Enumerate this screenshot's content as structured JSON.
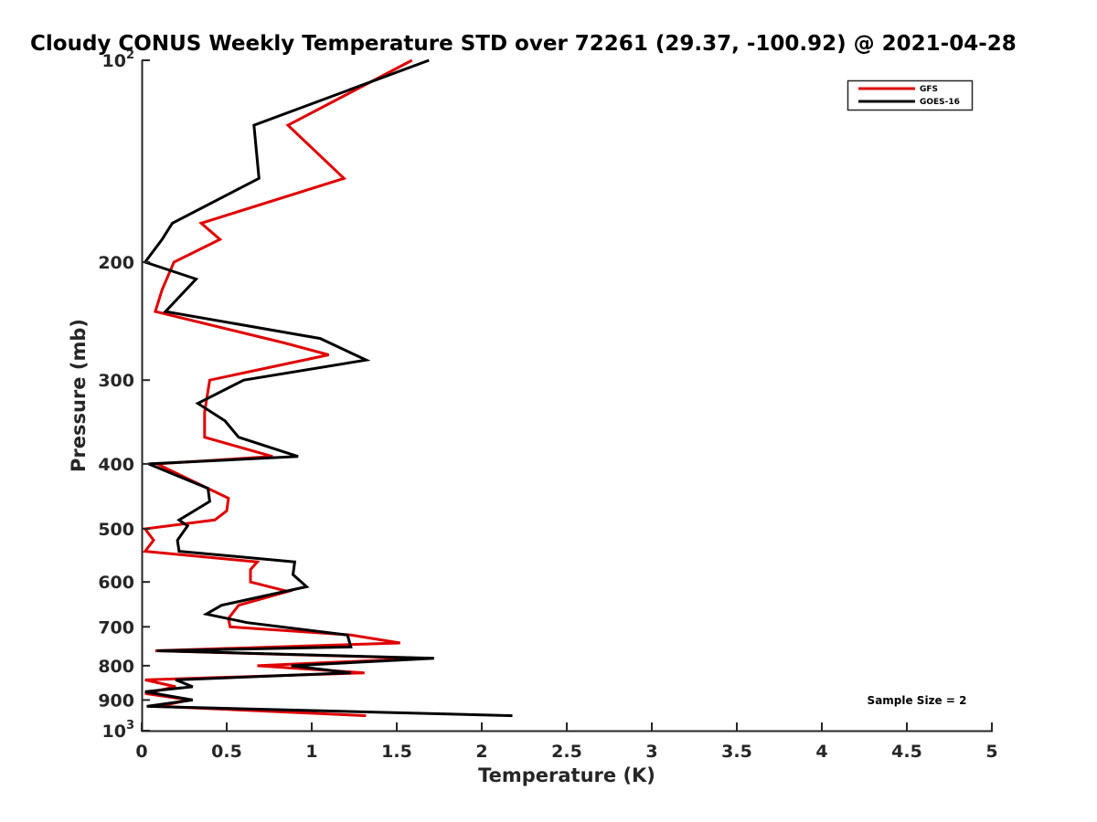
{
  "chart_data": {
    "type": "line",
    "title": "Cloudy CONUS Weekly Temperature STD over 72261 (29.37, -100.92) @ 2021-04-28",
    "xlabel": "Temperature (K)",
    "ylabel": "Pressure (mb)",
    "xlim": [
      0,
      5
    ],
    "ylim": [
      100,
      1000
    ],
    "yscale": "log",
    "y_reversed": true,
    "grid": false,
    "legend_position": "top-right",
    "x_ticks": [
      0,
      0.5,
      1,
      1.5,
      2,
      2.5,
      3,
      3.5,
      4,
      4.5,
      5
    ],
    "x_tick_labels": [
      "0",
      "0.5",
      "1",
      "1.5",
      "2",
      "2.5",
      "3",
      "3.5",
      "4",
      "4.5",
      "5"
    ],
    "y_ticks": [
      {
        "value": 100,
        "base": "10",
        "exp": "2"
      },
      {
        "value": 200,
        "base": "200",
        "exp": ""
      },
      {
        "value": 300,
        "base": "300",
        "exp": ""
      },
      {
        "value": 400,
        "base": "400",
        "exp": ""
      },
      {
        "value": 500,
        "base": "500",
        "exp": ""
      },
      {
        "value": 600,
        "base": "600",
        "exp": ""
      },
      {
        "value": 700,
        "base": "700",
        "exp": ""
      },
      {
        "value": 800,
        "base": "800",
        "exp": ""
      },
      {
        "value": 900,
        "base": "900",
        "exp": ""
      },
      {
        "value": 1000,
        "base": "10",
        "exp": "3"
      }
    ],
    "annotation": "Sample Size = 2",
    "series": [
      {
        "name": "GFS",
        "color": "#e00000",
        "points": [
          [
            1.59,
            100
          ],
          [
            0.86,
            125
          ],
          [
            1.19,
            150
          ],
          [
            0.35,
            175
          ],
          [
            0.46,
            185
          ],
          [
            0.19,
            200
          ],
          [
            0.12,
            220
          ],
          [
            0.08,
            237
          ],
          [
            0.84,
            264
          ],
          [
            1.1,
            275
          ],
          [
            0.4,
            300
          ],
          [
            0.37,
            335
          ],
          [
            0.37,
            365
          ],
          [
            0.77,
            390
          ],
          [
            0.09,
            400
          ],
          [
            0.51,
            450
          ],
          [
            0.5,
            470
          ],
          [
            0.43,
            485
          ],
          [
            0.02,
            500
          ],
          [
            0.07,
            520
          ],
          [
            0.02,
            540
          ],
          [
            0.68,
            560
          ],
          [
            0.64,
            575
          ],
          [
            0.64,
            600
          ],
          [
            0.86,
            620
          ],
          [
            0.57,
            650
          ],
          [
            0.51,
            680
          ],
          [
            0.52,
            700
          ],
          [
            1.23,
            720
          ],
          [
            1.52,
            740
          ],
          [
            0.08,
            760
          ],
          [
            1.66,
            780
          ],
          [
            0.68,
            800
          ],
          [
            1.31,
            820
          ],
          [
            0.02,
            840
          ],
          [
            0.2,
            860
          ],
          [
            0.02,
            880
          ],
          [
            0.28,
            900
          ],
          [
            0.1,
            920
          ],
          [
            1.32,
            950
          ]
        ]
      },
      {
        "name": "GOES-16",
        "color": "#000000",
        "points": [
          [
            1.69,
            100
          ],
          [
            0.66,
            125
          ],
          [
            0.69,
            150
          ],
          [
            0.18,
            175
          ],
          [
            0.12,
            185
          ],
          [
            0.02,
            200
          ],
          [
            0.32,
            212
          ],
          [
            0.14,
            237
          ],
          [
            1.05,
            260
          ],
          [
            1.32,
            280
          ],
          [
            0.6,
            300
          ],
          [
            0.33,
            325
          ],
          [
            0.49,
            345
          ],
          [
            0.57,
            365
          ],
          [
            0.92,
            390
          ],
          [
            0.04,
            400
          ],
          [
            0.39,
            435
          ],
          [
            0.4,
            455
          ],
          [
            0.22,
            485
          ],
          [
            0.27,
            495
          ],
          [
            0.21,
            520
          ],
          [
            0.22,
            540
          ],
          [
            0.9,
            560
          ],
          [
            0.89,
            585
          ],
          [
            0.97,
            610
          ],
          [
            0.47,
            650
          ],
          [
            0.38,
            670
          ],
          [
            0.62,
            690
          ],
          [
            1.21,
            720
          ],
          [
            1.23,
            750
          ],
          [
            0.09,
            760
          ],
          [
            1.72,
            780
          ],
          [
            0.88,
            800
          ],
          [
            1.23,
            820
          ],
          [
            0.2,
            840
          ],
          [
            0.3,
            860
          ],
          [
            0.02,
            875
          ],
          [
            0.3,
            900
          ],
          [
            0.03,
            920
          ],
          [
            2.18,
            950
          ]
        ]
      }
    ]
  }
}
